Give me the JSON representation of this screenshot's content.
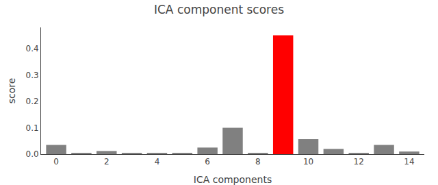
{
  "chart_data": {
    "type": "bar",
    "title": "ICA component scores",
    "xlabel": "ICA components",
    "ylabel": "score",
    "x": [
      0,
      1,
      2,
      3,
      4,
      5,
      6,
      7,
      8,
      9,
      10,
      11,
      12,
      13,
      14
    ],
    "values": [
      0.035,
      0.005,
      0.012,
      0.005,
      0.005,
      0.003,
      0.025,
      0.1,
      0.005,
      0.45,
      0.057,
      0.02,
      0.005,
      0.035,
      0.01
    ],
    "colors": [
      "#808080",
      "#808080",
      "#808080",
      "#808080",
      "#808080",
      "#808080",
      "#808080",
      "#808080",
      "#808080",
      "#ff0000",
      "#808080",
      "#808080",
      "#808080",
      "#808080",
      "#808080"
    ],
    "xlim": [
      -0.6,
      14.6
    ],
    "xticks": [
      0,
      2,
      4,
      6,
      8,
      10,
      12,
      14
    ],
    "ylim": [
      0,
      0.48
    ],
    "yticks": [
      {
        "value": 0,
        "label": "0.0"
      },
      0.1,
      0.2,
      0.3,
      0.4
    ],
    "grid": false
  }
}
